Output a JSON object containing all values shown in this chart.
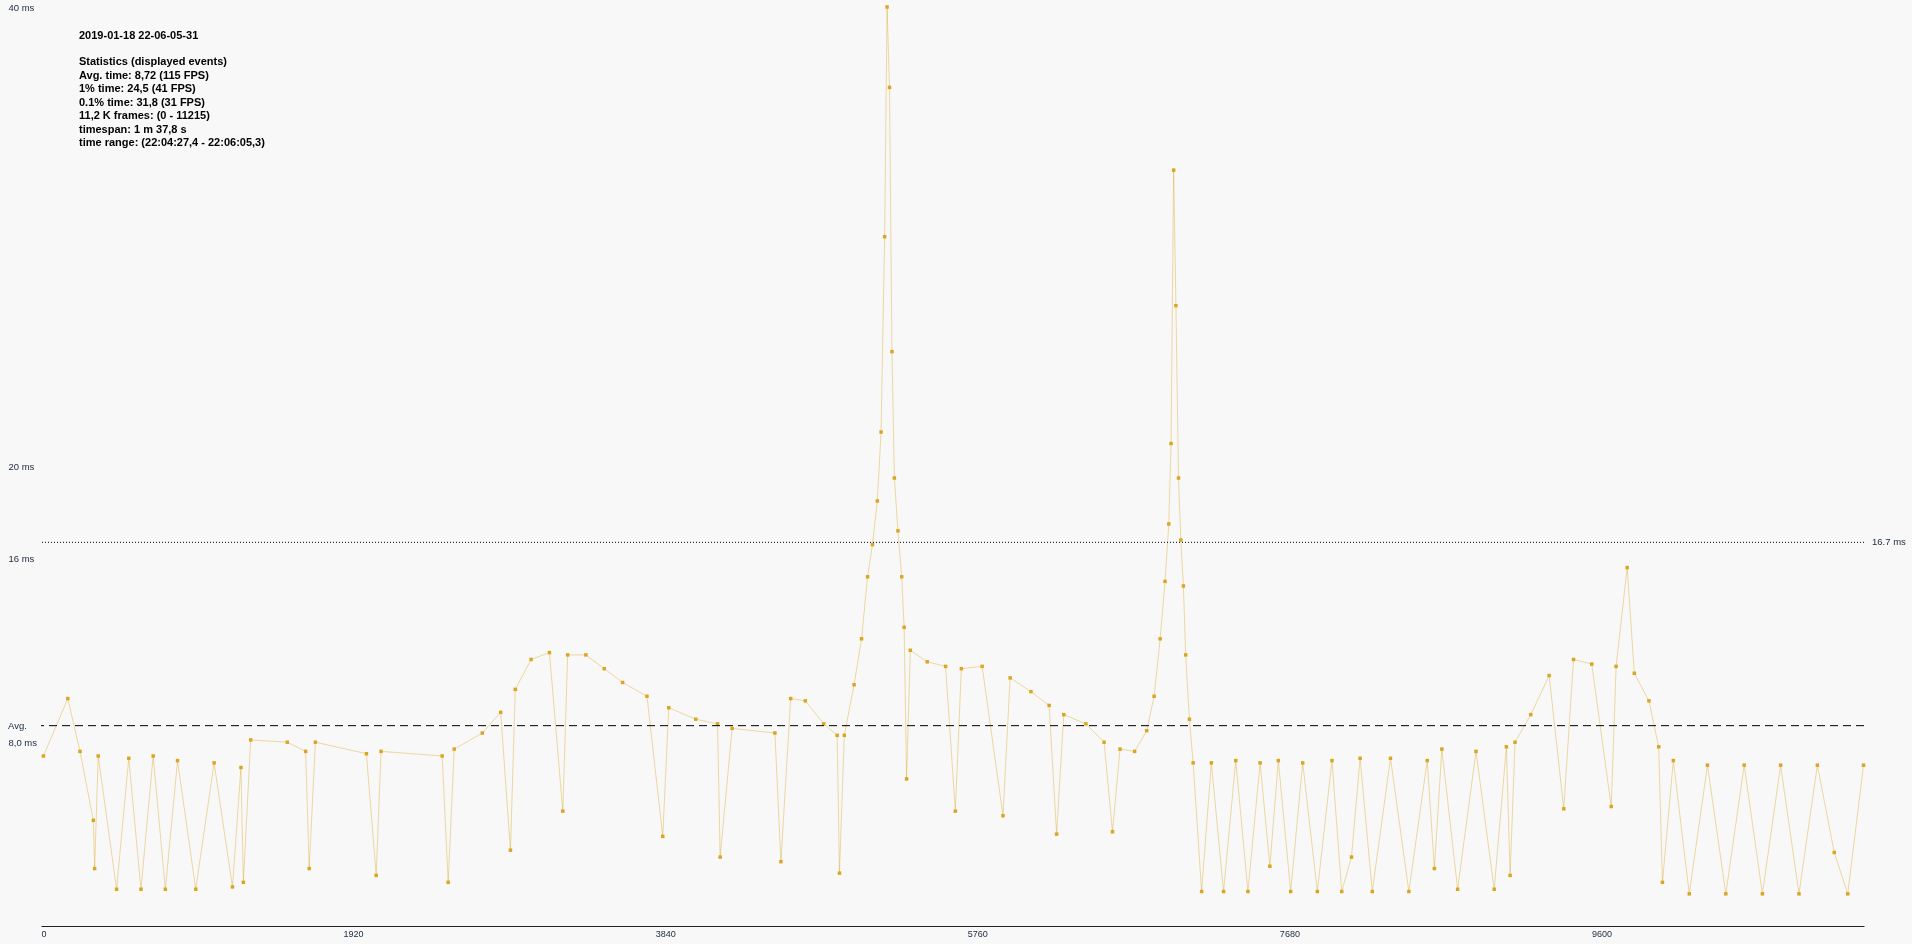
{
  "chart_data": {
    "type": "line",
    "subtitle": "2019-01-18 22-06-05-31",
    "annotations": [
      "Statistics (displayed events)",
      "Avg. time: 8,72 (115 FPS)",
      "1% time: 24,5 (41 FPS)",
      "0.1% time: 31,8 (31 FPS)",
      "11,2 K frames: (0 - 11215)",
      "timespan: 1 m 37,8 s",
      "time range: (22:04:27,4 - 22:06:05,3)"
    ],
    "x": [
      15,
      165,
      240,
      322,
      330,
      352,
      465,
      540,
      615,
      690,
      765,
      840,
      952,
      1065,
      1178,
      1230,
      1245,
      1290,
      1515,
      1628,
      1650,
      1688,
      2002,
      2062,
      2092,
      2468,
      2505,
      2542,
      2715,
      2828,
      2888,
      2918,
      3015,
      3128,
      3210,
      3240,
      3352,
      3465,
      3578,
      3728,
      3825,
      3862,
      4028,
      4162,
      4178,
      4252,
      4515,
      4552,
      4612,
      4702,
      4815,
      4898,
      4912,
      4942,
      5002,
      5048,
      5085,
      5115,
      5145,
      5168,
      5190,
      5205,
      5220,
      5235,
      5250,
      5272,
      5295,
      5310,
      5325,
      5348,
      5452,
      5565,
      5625,
      5662,
      5790,
      5918,
      5962,
      6090,
      6202,
      6248,
      6292,
      6428,
      6540,
      6592,
      6638,
      6728,
      6802,
      6848,
      6885,
      6915,
      6938,
      6952,
      6968,
      6982,
      6998,
      7012,
      7028,
      7042,
      7065,
      7088,
      7140,
      7200,
      7275,
      7350,
      7425,
      7500,
      7560,
      7612,
      7688,
      7762,
      7852,
      7942,
      8002,
      8062,
      8115,
      8190,
      8302,
      8415,
      8528,
      8572,
      8618,
      8715,
      8828,
      8940,
      9015,
      9038,
      9068,
      9165,
      9278,
      9368,
      9428,
      9540,
      9660,
      9690,
      9758,
      9802,
      9892,
      9952,
      9975,
      10042,
      10140,
      10252,
      10365,
      10478,
      10590,
      10702,
      10815,
      10928,
      11032,
      11115,
      11212
    ],
    "series": [
      {
        "color": "#daa520",
        "values": [
          7.4,
          9.9,
          7.6,
          4.6,
          2.5,
          7.4,
          1.6,
          7.3,
          1.6,
          7.4,
          1.6,
          7.2,
          1.6,
          7.1,
          1.7,
          6.9,
          1.9,
          8.1,
          8.0,
          7.6,
          2.5,
          8.0,
          7.5,
          2.2,
          7.6,
          7.4,
          1.9,
          7.7,
          8.4,
          9.3,
          3.3,
          10.3,
          11.6,
          11.9,
          5.0,
          11.8,
          11.8,
          11.2,
          10.6,
          10.0,
          3.9,
          9.5,
          9.0,
          8.8,
          3.0,
          8.6,
          8.4,
          2.8,
          9.9,
          9.8,
          8.8,
          8.3,
          2.3,
          8.3,
          10.5,
          12.5,
          15.2,
          16.6,
          18.5,
          21.5,
          30,
          40,
          36.5,
          25,
          19.5,
          17.2,
          15.2,
          13.0,
          6.4,
          12.0,
          11.5,
          11.3,
          5.0,
          11.2,
          11.3,
          4.8,
          10.8,
          10.2,
          9.6,
          4.0,
          9.2,
          8.8,
          8.0,
          4.1,
          7.7,
          7.6,
          8.5,
          10.0,
          12.5,
          15.0,
          17.5,
          21,
          32.9,
          27,
          19.5,
          16.8,
          14.8,
          11.8,
          9.0,
          7.1,
          1.5,
          7.1,
          1.5,
          7.2,
          1.5,
          7.1,
          2.6,
          7.2,
          1.5,
          7.1,
          1.5,
          7.2,
          1.5,
          3.0,
          7.3,
          1.5,
          7.3,
          1.5,
          7.2,
          2.5,
          7.7,
          1.6,
          7.6,
          1.6,
          7.8,
          2.2,
          8.0,
          9.2,
          10.9,
          5.1,
          11.6,
          11.4,
          5.2,
          11.3,
          15.6,
          11.0,
          9.8,
          7.8,
          1.9,
          7.2,
          1.4,
          7.0,
          1.4,
          7.0,
          1.4,
          7.0,
          1.4,
          7.0,
          3.2,
          1.4,
          7.0
        ]
      }
    ],
    "xlim": [
      0,
      11215
    ],
    "xticks": [
      0,
      1920,
      3840,
      5760,
      7680,
      9600
    ],
    "ylim": [
      0,
      40
    ],
    "yticks": [
      {
        "value": 8,
        "label": "8,0 ms"
      },
      {
        "value": 16,
        "label": "16 ms"
      },
      {
        "value": 20,
        "label": "20 ms"
      },
      {
        "value": 40,
        "label": "40 ms"
      }
    ],
    "ref_lines": [
      {
        "axis": "y",
        "value": 16.7,
        "label": "16.7 ms",
        "color": "#000000",
        "line_style": "dotted"
      },
      {
        "axis": "y",
        "value": 8.72,
        "label": "Avg.",
        "color": "#000000",
        "line_style": "dashed"
      }
    ],
    "marker": "square"
  }
}
